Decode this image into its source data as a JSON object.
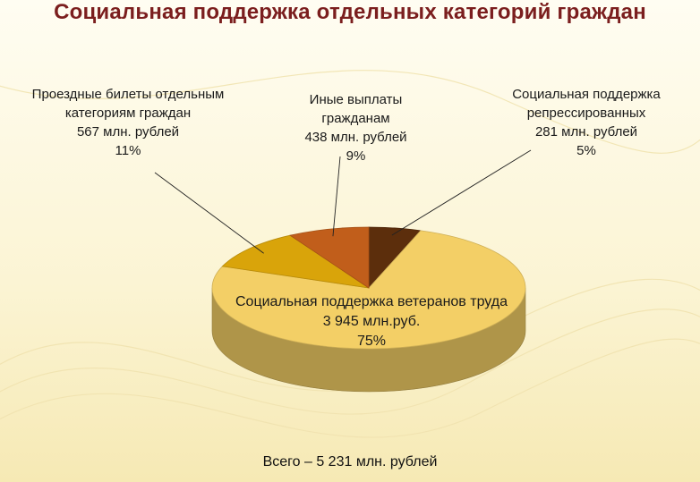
{
  "title": "Социальная поддержка отдельных категорий граждан",
  "total": "Всего – 5 231 млн. рублей",
  "chart_data": {
    "type": "pie",
    "title": "Социальная поддержка отдельных категорий граждан",
    "unit": "млн. рублей",
    "slices": [
      {
        "name": "Социальная поддержка репрессированных",
        "value": 281,
        "percent": 5,
        "color": "#5c2e0c",
        "lines": [
          "Социальная поддержка",
          "репрессированных",
          "281 млн. рублей",
          "5%"
        ]
      },
      {
        "name": "Социальная поддержка ветеранов труда",
        "value": 3945,
        "percent": 75,
        "color": "#f3cf66",
        "lines": [
          "Социальная поддержка ветеранов труда",
          "3 945 млн.руб.",
          "75%"
        ]
      },
      {
        "name": "Проездные билеты отдельным категориям граждан",
        "value": 567,
        "percent": 11,
        "color": "#d9a40a",
        "lines": [
          "Проездные билеты отдельным",
          "категориям граждан",
          "567 млн. рублей",
          "11%"
        ]
      },
      {
        "name": "Иные выплаты гражданам",
        "value": 438,
        "percent": 9,
        "color": "#c15e1b",
        "lines": [
          "Иные выплаты",
          "гражданам",
          "438 млн. рублей",
          "9%"
        ]
      }
    ]
  }
}
